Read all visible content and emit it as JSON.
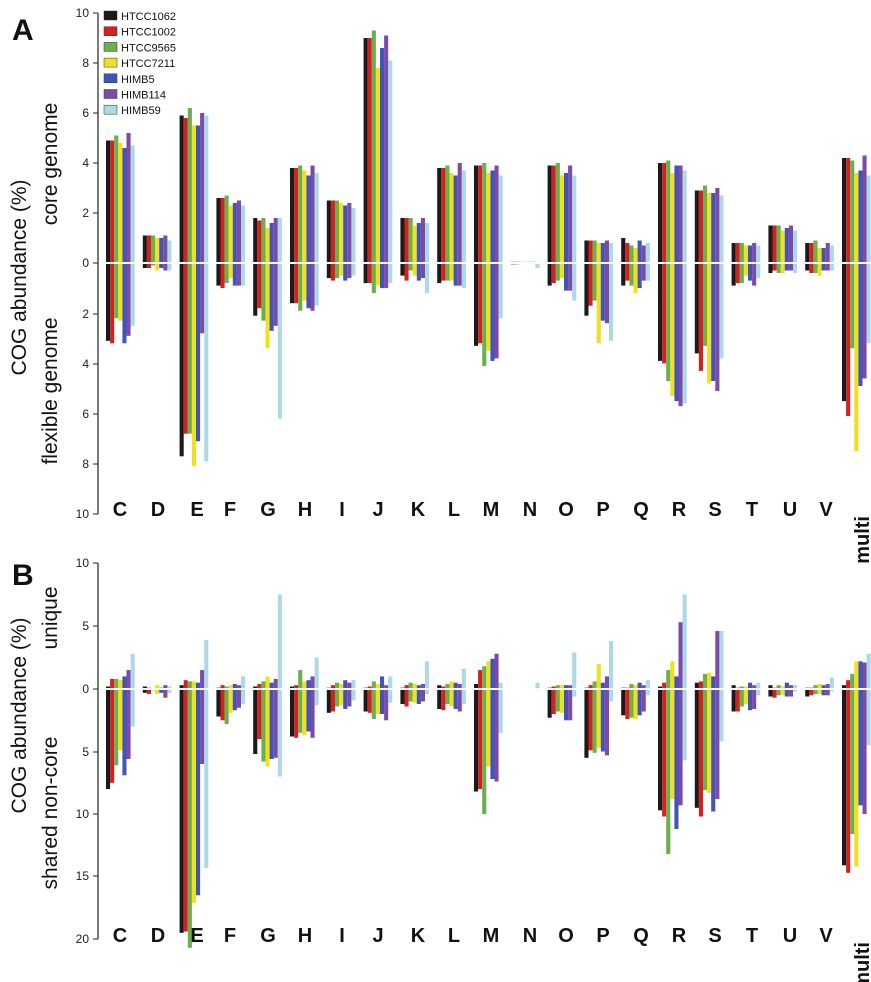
{
  "chart_data": [
    {
      "panel": "A",
      "type": "bar",
      "ylabel": "COG  abundance (%)",
      "ylabel_top": "core genome",
      "ylabel_bottom": "flexible genome",
      "yticks_top": [
        "10",
        "8",
        "6",
        "4",
        "2",
        "0"
      ],
      "yticks_bottom": [
        "2",
        "4",
        "6",
        "8",
        "10"
      ],
      "ylim_top": [
        0,
        10
      ],
      "ylim_bottom": [
        0,
        10
      ],
      "categories": [
        "C",
        "D",
        "E",
        "F",
        "G",
        "H",
        "I",
        "J",
        "K",
        "L",
        "M",
        "N",
        "O",
        "P",
        "Q",
        "R",
        "S",
        "T",
        "U",
        "V",
        "multi"
      ],
      "series": [
        {
          "name": "HTCC1062",
          "color": "#1a1a1a",
          "core": [
            4.9,
            1.1,
            5.9,
            2.6,
            1.8,
            3.8,
            2.5,
            9.0,
            1.8,
            3.8,
            3.9,
            0.05,
            3.9,
            0.9,
            1.0,
            4.0,
            2.9,
            0.8,
            1.5,
            0.8,
            4.2
          ],
          "flex": [
            3.1,
            0.2,
            7.7,
            0.9,
            2.1,
            1.6,
            0.6,
            0.8,
            0.5,
            0.8,
            3.3,
            0.05,
            0.9,
            2.1,
            0.9,
            3.9,
            3.6,
            0.9,
            0.4,
            0.3,
            5.5
          ]
        },
        {
          "name": "HTCC1002",
          "color": "#d42020",
          "core": [
            4.9,
            1.1,
            5.8,
            2.6,
            1.7,
            3.8,
            2.5,
            9.0,
            1.8,
            3.8,
            3.9,
            0.05,
            3.9,
            0.9,
            0.8,
            4.0,
            2.9,
            0.8,
            1.5,
            0.8,
            4.2
          ],
          "flex": [
            3.2,
            0.2,
            6.8,
            1.0,
            1.8,
            1.6,
            0.7,
            0.8,
            0.7,
            0.7,
            3.2,
            0.05,
            0.8,
            1.7,
            0.7,
            4.0,
            4.3,
            0.8,
            0.3,
            0.4,
            6.1
          ]
        },
        {
          "name": "HTCC9565",
          "color": "#6ab04c",
          "core": [
            5.1,
            1.1,
            6.2,
            2.7,
            1.8,
            3.9,
            2.5,
            9.3,
            1.8,
            3.9,
            4.0,
            0.05,
            4.0,
            0.9,
            0.7,
            4.1,
            3.1,
            0.8,
            1.5,
            0.9,
            4.1
          ],
          "flex": [
            2.2,
            0.1,
            6.8,
            0.8,
            2.3,
            1.9,
            0.6,
            1.2,
            0.3,
            0.7,
            4.1,
            0.04,
            0.7,
            1.5,
            0.9,
            4.7,
            3.3,
            0.8,
            0.4,
            0.4,
            3.4
          ]
        },
        {
          "name": "HTCC7211",
          "color": "#f0e020",
          "core": [
            4.8,
            1.0,
            5.5,
            2.3,
            1.4,
            3.7,
            2.4,
            7.8,
            1.5,
            3.6,
            3.6,
            0.05,
            3.5,
            0.8,
            0.6,
            3.6,
            2.8,
            0.7,
            1.3,
            0.6,
            3.6
          ],
          "flex": [
            2.3,
            0.3,
            8.1,
            0.6,
            3.4,
            1.5,
            0.5,
            0.9,
            0.5,
            0.7,
            3.5,
            0.04,
            0.6,
            3.2,
            1.2,
            5.3,
            4.8,
            0.5,
            0.4,
            0.5,
            7.5
          ]
        },
        {
          "name": "HIMB5",
          "color": "#4055b5",
          "core": [
            4.6,
            1.0,
            5.5,
            2.4,
            1.6,
            3.5,
            2.3,
            8.6,
            1.6,
            3.5,
            3.7,
            0.05,
            3.6,
            0.8,
            0.9,
            3.9,
            2.8,
            0.7,
            1.4,
            0.6,
            3.7
          ],
          "flex": [
            3.2,
            0.2,
            7.1,
            0.9,
            2.7,
            1.8,
            0.7,
            1.0,
            0.7,
            0.9,
            3.9,
            0.04,
            1.1,
            2.3,
            1.0,
            5.5,
            4.7,
            0.7,
            0.3,
            0.3,
            4.9
          ]
        },
        {
          "name": "HIMB114",
          "color": "#7d4aa8",
          "core": [
            5.2,
            1.1,
            6.0,
            2.5,
            1.8,
            3.9,
            2.4,
            9.1,
            1.8,
            4.0,
            3.9,
            0.05,
            3.9,
            0.9,
            0.7,
            3.9,
            3.0,
            0.8,
            1.5,
            0.8,
            4.3
          ],
          "flex": [
            2.9,
            0.3,
            2.8,
            0.9,
            2.5,
            1.9,
            0.6,
            1.0,
            0.6,
            0.9,
            3.8,
            0.04,
            1.1,
            2.4,
            0.7,
            5.7,
            5.1,
            0.9,
            0.3,
            0.3,
            4.6
          ]
        },
        {
          "name": "HIMB59",
          "color": "#add8e6",
          "core": [
            4.7,
            0.9,
            5.9,
            2.3,
            1.8,
            3.6,
            2.2,
            8.1,
            1.6,
            3.7,
            3.5,
            0.05,
            3.5,
            0.8,
            0.8,
            3.7,
            2.7,
            0.7,
            1.3,
            0.7,
            3.5
          ],
          "flex": [
            2.5,
            0.3,
            7.9,
            0.9,
            6.2,
            1.7,
            0.5,
            0.8,
            1.2,
            1.0,
            2.2,
            0.2,
            1.5,
            3.1,
            0.7,
            5.6,
            3.8,
            0.6,
            0.4,
            0.3,
            3.2
          ]
        }
      ]
    },
    {
      "panel": "B",
      "type": "bar",
      "ylabel": "COG abundance (%)",
      "ylabel_top": "unique",
      "ylabel_bottom": "shared non-core",
      "yticks_top": [
        "10",
        "5",
        "0"
      ],
      "yticks_bottom": [
        "5",
        "10",
        "15",
        "20"
      ],
      "ylim_top": [
        0,
        10
      ],
      "ylim_bottom": [
        0,
        20
      ],
      "categories": [
        "C",
        "D",
        "E",
        "F",
        "G",
        "H",
        "I",
        "J",
        "K",
        "L",
        "M",
        "N",
        "O",
        "P",
        "Q",
        "R",
        "S",
        "T",
        "U",
        "V",
        "multi"
      ],
      "series": [
        {
          "name": "HTCC1062",
          "color": "#1a1a1a",
          "unique": [
            0.2,
            0.2,
            0.3,
            0.1,
            0.2,
            0.2,
            0.1,
            0.1,
            0.1,
            0.3,
            0.4,
            0.05,
            0.1,
            0.1,
            0.1,
            0.2,
            0.5,
            0.3,
            0.3,
            0.1,
            0.3
          ],
          "shared": [
            8.0,
            0.3,
            19.5,
            2.2,
            5.2,
            3.8,
            1.9,
            1.8,
            1.2,
            1.6,
            8.2,
            0.05,
            2.3,
            5.5,
            2.1,
            9.7,
            9.5,
            1.8,
            0.6,
            0.6,
            14.1
          ]
        },
        {
          "name": "HTCC1002",
          "color": "#d42020",
          "unique": [
            0.8,
            0.1,
            0.7,
            0.3,
            0.4,
            0.3,
            0.3,
            0.2,
            0.3,
            0.2,
            1.5,
            0.04,
            0.2,
            0.3,
            0.1,
            0.5,
            0.6,
            0.1,
            0.1,
            0.1,
            0.7
          ],
          "shared": [
            7.5,
            0.4,
            19.4,
            2.5,
            4.0,
            3.9,
            1.8,
            1.9,
            1.4,
            1.7,
            8.0,
            0.05,
            2.0,
            4.9,
            2.4,
            10.2,
            10.2,
            1.8,
            0.7,
            0.5,
            14.7
          ]
        },
        {
          "name": "HTCC9565",
          "color": "#6ab04c",
          "unique": [
            0.8,
            0.0,
            0.6,
            0.2,
            0.6,
            1.5,
            0.5,
            0.6,
            0.5,
            0.4,
            1.8,
            0.04,
            0.3,
            0.6,
            0.4,
            1.5,
            1.2,
            0.2,
            0.3,
            0.3,
            1.2
          ],
          "shared": [
            6.1,
            0.1,
            20.7,
            2.8,
            5.8,
            3.5,
            1.4,
            2.4,
            1.0,
            1.2,
            10.0,
            0.04,
            1.8,
            5.1,
            2.3,
            13.2,
            8.1,
            1.4,
            0.5,
            0.4,
            11.6
          ]
        },
        {
          "name": "HTCC7211",
          "color": "#f0e020",
          "unique": [
            0.7,
            0.3,
            0.6,
            0.3,
            1.0,
            0.6,
            0.4,
            0.4,
            0.4,
            0.6,
            2.2,
            0.04,
            0.3,
            2.0,
            0.3,
            2.2,
            1.3,
            0.2,
            0.2,
            0.4,
            2.2
          ],
          "shared": [
            4.9,
            0.4,
            17.1,
            1.9,
            6.2,
            3.7,
            1.3,
            2.0,
            1.1,
            1.4,
            6.2,
            0.04,
            1.9,
            4.7,
            2.4,
            8.8,
            8.3,
            1.2,
            0.5,
            0.4,
            14.2
          ]
        },
        {
          "name": "HIMB5",
          "color": "#4055b5",
          "unique": [
            1.0,
            0.1,
            0.5,
            0.4,
            0.5,
            0.7,
            0.7,
            1.0,
            0.3,
            0.5,
            2.4,
            0.05,
            0.3,
            0.5,
            0.5,
            1.0,
            1.0,
            0.5,
            0.5,
            0.3,
            2.2
          ],
          "shared": [
            6.9,
            0.3,
            16.5,
            1.7,
            5.6,
            3.4,
            1.6,
            2.0,
            1.2,
            1.6,
            7.2,
            0.05,
            2.5,
            5.0,
            2.1,
            11.2,
            9.8,
            1.7,
            0.6,
            0.5,
            9.3
          ]
        },
        {
          "name": "HIMB114",
          "color": "#7d4aa8",
          "unique": [
            1.5,
            0.3,
            1.5,
            0.3,
            0.8,
            1.0,
            0.5,
            0.3,
            0.4,
            0.4,
            2.8,
            0.04,
            0.3,
            1.0,
            0.3,
            5.3,
            4.6,
            0.3,
            0.3,
            0.4,
            2.1
          ],
          "shared": [
            5.6,
            0.7,
            6.0,
            1.5,
            5.5,
            3.9,
            1.4,
            2.5,
            1.0,
            1.8,
            7.4,
            0.04,
            2.5,
            5.3,
            1.8,
            9.3,
            8.8,
            1.6,
            0.6,
            0.5,
            10.0
          ]
        },
        {
          "name": "HIMB59",
          "color": "#add8e6",
          "unique": [
            2.8,
            0.2,
            3.9,
            1.0,
            7.5,
            2.5,
            0.7,
            1.0,
            2.2,
            1.6,
            0.5,
            0.5,
            2.9,
            3.8,
            0.7,
            7.5,
            4.6,
            0.5,
            0.3,
            0.9,
            2.8
          ],
          "shared": [
            3.0,
            0.3,
            14.3,
            1.2,
            7.0,
            1.3,
            0.9,
            1.1,
            0.4,
            1.2,
            3.5,
            0.1,
            0.6,
            1.0,
            0.5,
            5.7,
            4.2,
            0.5,
            0.2,
            0.2,
            4.5
          ]
        }
      ]
    }
  ]
}
